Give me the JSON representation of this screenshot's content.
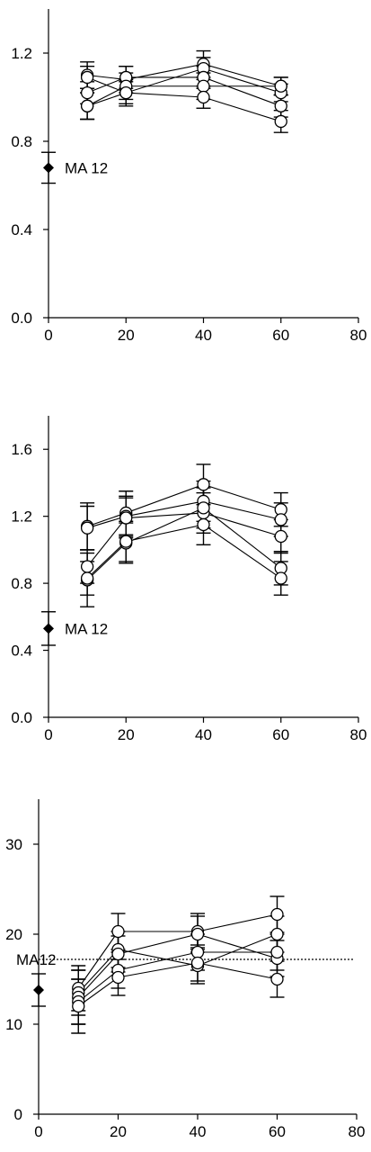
{
  "chart_data": [
    {
      "type": "line",
      "xlim": [
        0,
        80
      ],
      "ylim": [
        0,
        1.4
      ],
      "xticks": [
        "0",
        "20",
        "40",
        "60",
        "80"
      ],
      "yticks": [
        "0.0",
        "0.4",
        "0.8",
        "1.2"
      ],
      "ytick_values": [
        0,
        0.4,
        0.8,
        1.2
      ],
      "grid": false,
      "x": [
        10,
        20,
        40,
        60
      ],
      "series": [
        {
          "values": [
            1.1,
            1.08,
            1.15,
            1.05
          ],
          "errors": [
            0.06,
            0.06,
            0.06,
            0.04
          ]
        },
        {
          "values": [
            1.09,
            1.02,
            1.13,
            1.02
          ],
          "errors": [
            0.05,
            0.05,
            0.05,
            0.04
          ]
        },
        {
          "values": [
            1.02,
            1.09,
            1.09,
            0.96
          ],
          "errors": [
            0.05,
            0.05,
            0.05,
            0.05
          ]
        },
        {
          "values": [
            0.96,
            1.05,
            1.05,
            1.05
          ],
          "errors": [
            0.06,
            0.06,
            0.06,
            0.04
          ]
        },
        {
          "values": [
            0.96,
            1.02,
            1.0,
            0.89
          ],
          "errors": [
            0.06,
            0.06,
            0.05,
            0.05
          ]
        }
      ],
      "reference": {
        "label": "MA 12",
        "x": 0,
        "value": 0.68,
        "error": 0.07,
        "line": false
      }
    },
    {
      "type": "line",
      "xlim": [
        0,
        80
      ],
      "ylim": [
        0,
        1.8
      ],
      "xticks": [
        "0",
        "20",
        "40",
        "60",
        "80"
      ],
      "yticks": [
        "0.0",
        "0.4",
        "0.8",
        "1.2",
        "1.6"
      ],
      "ytick_values": [
        0,
        0.4,
        0.8,
        1.2,
        1.6
      ],
      "grid": false,
      "x": [
        10,
        20,
        40,
        60
      ],
      "series": [
        {
          "values": [
            1.14,
            1.22,
            1.39,
            1.24
          ],
          "errors": [
            0.14,
            0.13,
            0.12,
            0.1
          ]
        },
        {
          "values": [
            1.13,
            1.2,
            1.29,
            1.18
          ],
          "errors": [
            0.13,
            0.12,
            0.12,
            0.1
          ]
        },
        {
          "values": [
            0.9,
            1.19,
            1.22,
            1.08
          ],
          "errors": [
            0.1,
            0.12,
            0.12,
            0.1
          ]
        },
        {
          "values": [
            0.82,
            1.04,
            1.25,
            0.89
          ],
          "errors": [
            0.16,
            0.12,
            0.12,
            0.1
          ]
        },
        {
          "values": [
            0.83,
            1.05,
            1.15,
            0.83
          ],
          "errors": [
            0.1,
            0.12,
            0.12,
            0.1
          ]
        }
      ],
      "reference": {
        "label": "MA 12",
        "x": 0,
        "value": 0.53,
        "error": 0.1,
        "line": false
      }
    },
    {
      "type": "line",
      "xlim": [
        0,
        80
      ],
      "ylim": [
        0,
        35
      ],
      "xticks": [
        "0",
        "20",
        "40",
        "60",
        "80"
      ],
      "yticks": [
        "0",
        "10",
        "20",
        "30"
      ],
      "ytick_values": [
        0,
        10,
        20,
        30
      ],
      "grid": false,
      "x": [
        10,
        20,
        40,
        60
      ],
      "series": [
        {
          "values": [
            14.0,
            20.3,
            20.3,
            22.2
          ],
          "errors": [
            2.5,
            2.0,
            2.0,
            2.0
          ]
        },
        {
          "values": [
            13.5,
            18.3,
            16.5,
            20.0
          ],
          "errors": [
            2.5,
            2.0,
            2.0,
            2.0
          ]
        },
        {
          "values": [
            13.0,
            17.8,
            20.0,
            17.3
          ],
          "errors": [
            3.0,
            2.0,
            2.0,
            2.0
          ]
        },
        {
          "values": [
            12.5,
            16.0,
            18.0,
            18.0
          ],
          "errors": [
            2.5,
            2.0,
            2.0,
            2.0
          ]
        },
        {
          "values": [
            12.0,
            15.2,
            16.8,
            15.0
          ],
          "errors": [
            3.0,
            2.0,
            2.0,
            2.0
          ]
        }
      ],
      "reference": {
        "label": "MA12",
        "x": 0,
        "value": 13.8,
        "error": 1.8,
        "line": true,
        "line_value": 17.2
      }
    }
  ]
}
